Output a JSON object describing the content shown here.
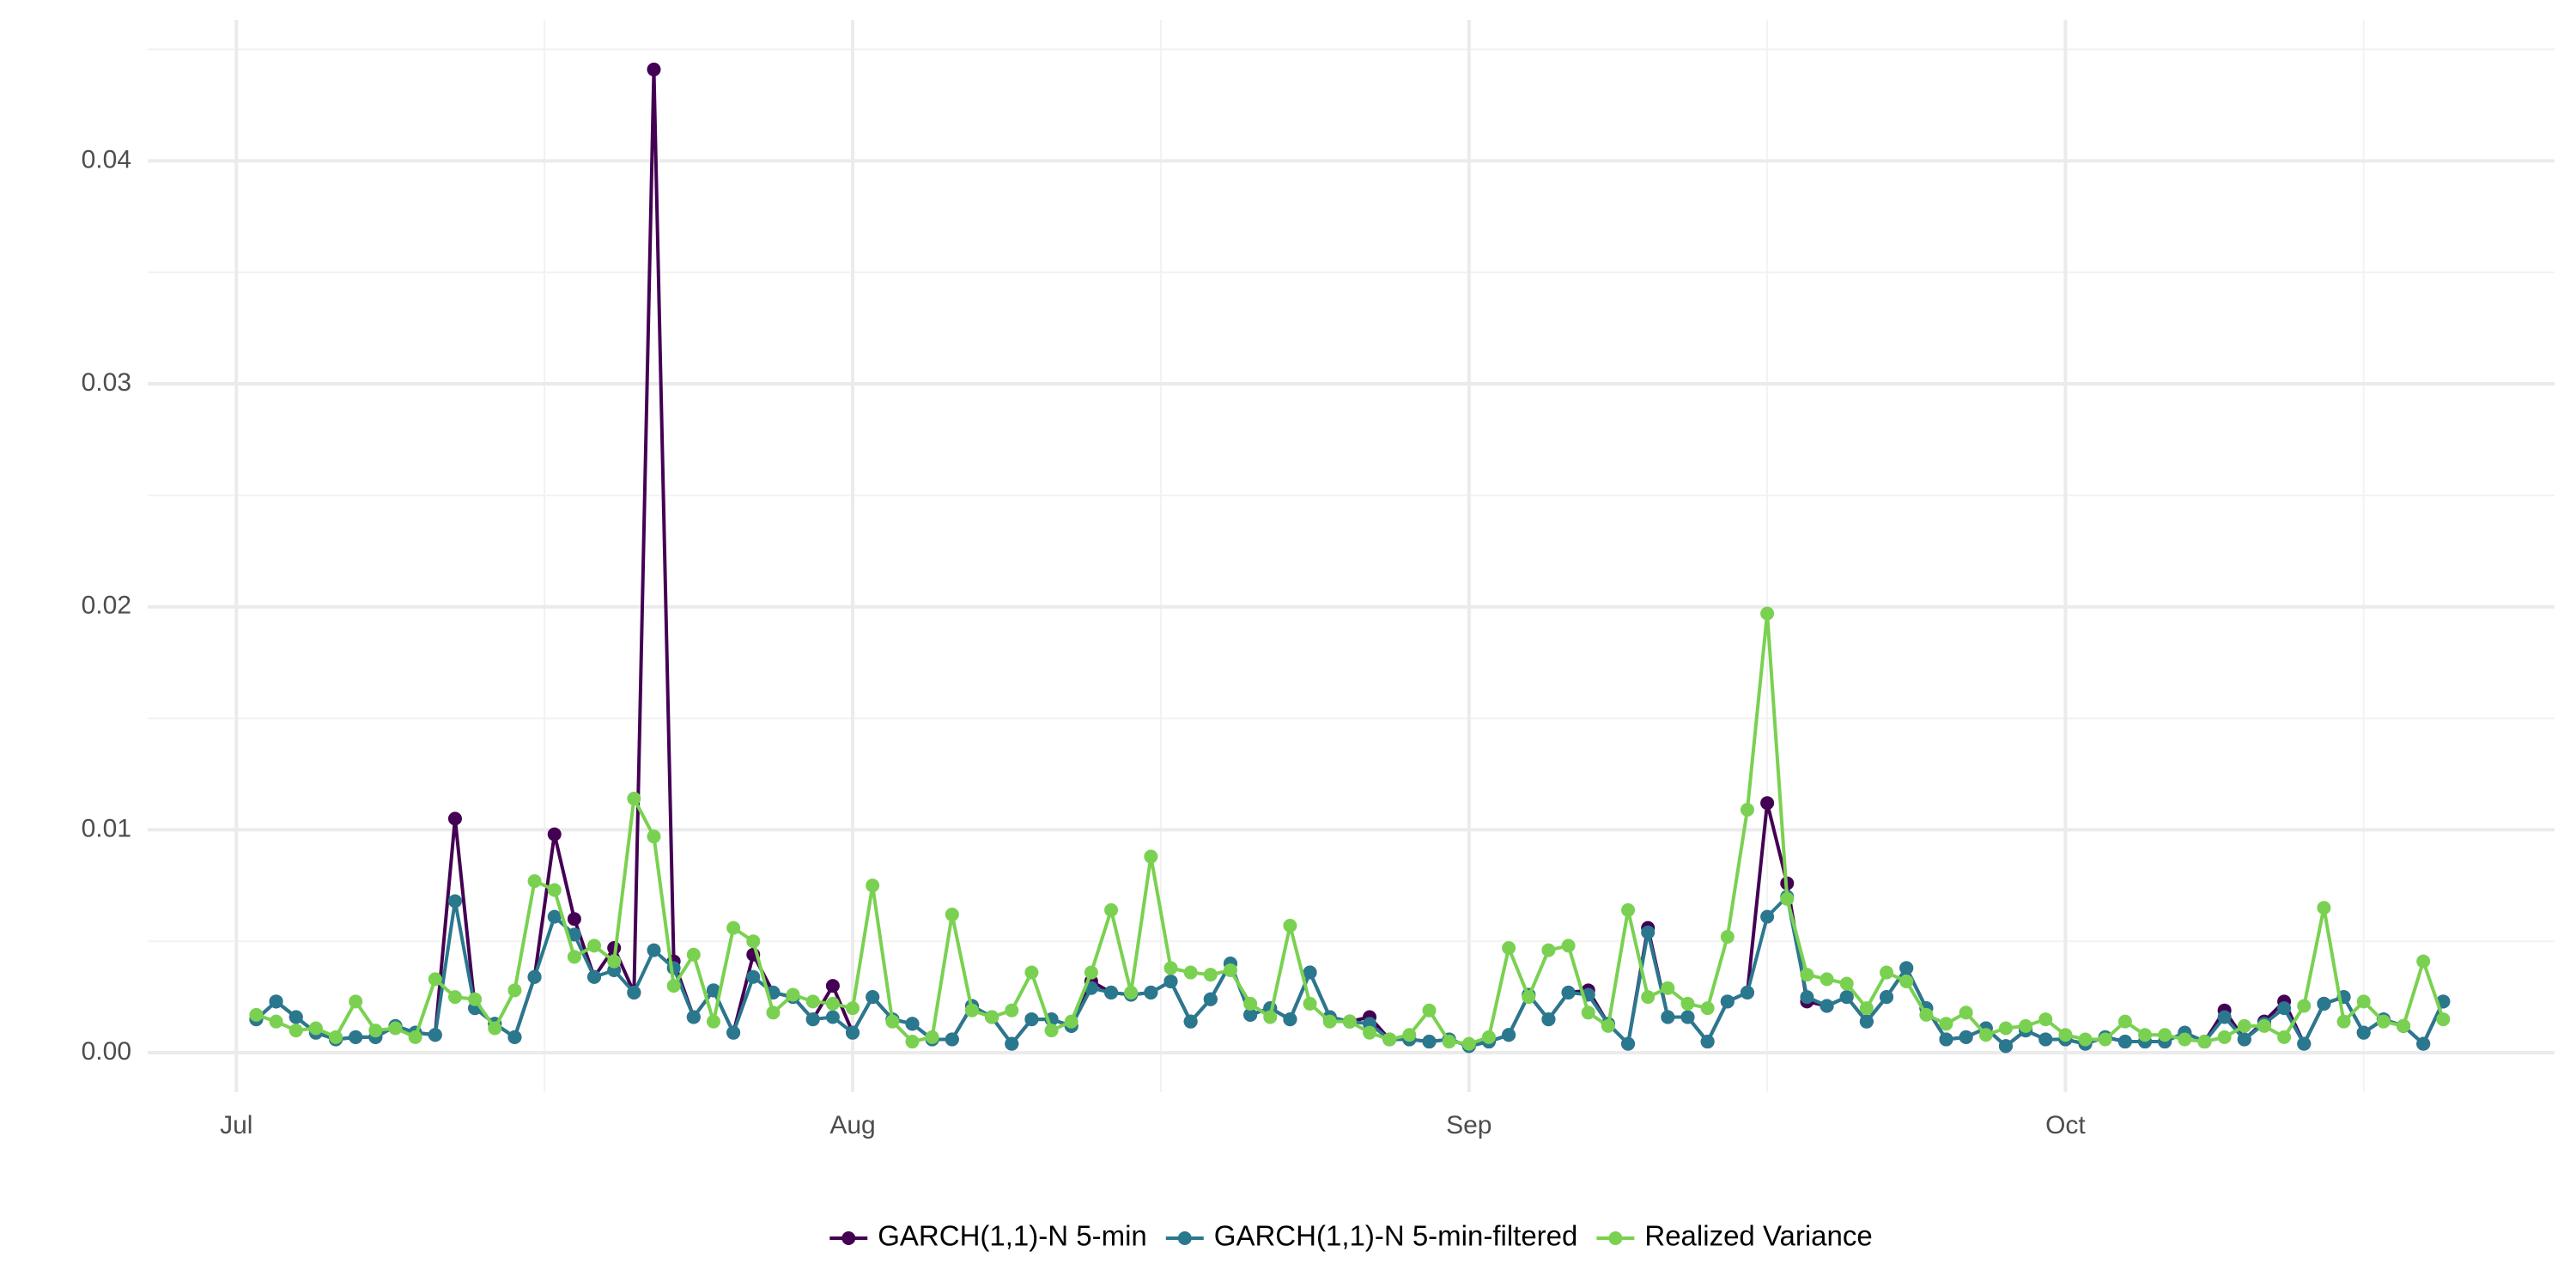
{
  "chart_data": {
    "type": "line",
    "x": [
      1,
      2,
      3,
      4,
      5,
      6,
      7,
      8,
      9,
      10,
      11,
      12,
      13,
      14,
      15,
      16,
      17,
      18,
      19,
      20,
      21,
      22,
      23,
      24,
      25,
      26,
      27,
      28,
      29,
      30,
      31,
      32,
      33,
      34,
      35,
      36,
      37,
      38,
      39,
      40,
      41,
      42,
      43,
      44,
      45,
      46,
      47,
      48,
      49,
      50,
      51,
      52,
      53,
      54,
      55,
      56,
      57,
      58,
      59,
      60,
      61,
      62,
      63,
      64,
      65,
      66,
      67,
      68,
      69,
      70,
      71,
      72,
      73,
      74,
      75,
      76,
      77,
      78,
      79,
      80,
      81,
      82,
      83,
      84,
      85,
      86,
      87,
      88,
      89,
      90,
      91,
      92,
      93,
      94,
      95,
      96,
      97,
      98,
      99,
      100,
      101,
      102,
      103,
      104,
      105,
      106,
      107,
      108,
      109,
      110,
      111
    ],
    "xlim": [
      -4.46,
      116.6
    ],
    "xticks": [
      {
        "value": 0,
        "label": "Jul"
      },
      {
        "value": 31,
        "label": "Aug"
      },
      {
        "value": 62,
        "label": "Sep"
      },
      {
        "value": 92,
        "label": "Oct"
      }
    ],
    "ylim": [
      -0.00177,
      0.04633
    ],
    "yticks": [
      {
        "value": 0,
        "label": "0.00"
      },
      0.01,
      0.02,
      0.03,
      0.04
    ],
    "grid": true,
    "legend": "bottom",
    "series": [
      {
        "name": "GARCH(1,1)-N 5-min",
        "color": "#440154",
        "values": [
          0.0015,
          0.0023,
          0.0016,
          0.0009,
          0.0006,
          0.0007,
          0.0007,
          0.0012,
          0.0009,
          0.0008,
          0.0105,
          0.002,
          0.0013,
          0.0007,
          0.0034,
          0.0098,
          0.006,
          0.0034,
          0.0047,
          0.0027,
          0.0441,
          0.0041,
          0.0016,
          0.0028,
          0.0009,
          0.0044,
          0.0027,
          0.0025,
          0.0015,
          0.003,
          0.0009,
          0.0025,
          0.0015,
          0.0013,
          0.0006,
          0.0006,
          0.0021,
          0.0016,
          0.0004,
          0.0015,
          0.0015,
          0.0012,
          0.0032,
          0.0027,
          0.0026,
          0.0027,
          0.0032,
          0.0014,
          0.0024,
          0.004,
          0.0017,
          0.002,
          0.0015,
          0.0036,
          0.0016,
          0.0014,
          0.0016,
          0.0006,
          0.0006,
          0.0005,
          0.0006,
          0.0003,
          0.0005,
          0.0008,
          0.0026,
          0.0015,
          0.0027,
          0.0028,
          0.0013,
          0.0004,
          0.0056,
          0.0016,
          0.0016,
          0.0005,
          0.0023,
          0.0027,
          0.0112,
          0.0076,
          0.0023,
          0.0021,
          0.0025,
          0.0014,
          0.0025,
          0.0038,
          0.002,
          0.0006,
          0.0007,
          0.0011,
          0.0003,
          0.001,
          0.0006,
          0.0006,
          0.0004,
          0.0007,
          0.0005,
          0.0005,
          0.0005,
          0.0009,
          0.0005,
          0.0019,
          0.0006,
          0.0014,
          0.0023,
          0.0004,
          0.0022,
          0.0025,
          0.0009,
          0.0015,
          0.0012,
          0.0004,
          0.0023
        ]
      },
      {
        "name": "GARCH(1,1)-N 5-min-filtered",
        "color": "#2A788E",
        "values": [
          0.0015,
          0.0023,
          0.0016,
          0.0009,
          0.0006,
          0.0007,
          0.0007,
          0.0012,
          0.0009,
          0.0008,
          0.0068,
          0.002,
          0.0013,
          0.0007,
          0.0034,
          0.0061,
          0.0053,
          0.0034,
          0.0037,
          0.0027,
          0.0046,
          0.0038,
          0.0016,
          0.0028,
          0.0009,
          0.0034,
          0.0027,
          0.0025,
          0.0015,
          0.0016,
          0.0009,
          0.0025,
          0.0015,
          0.0013,
          0.0006,
          0.0006,
          0.0021,
          0.0016,
          0.0004,
          0.0015,
          0.0015,
          0.0012,
          0.0029,
          0.0027,
          0.0026,
          0.0027,
          0.0032,
          0.0014,
          0.0024,
          0.004,
          0.0017,
          0.002,
          0.0015,
          0.0036,
          0.0016,
          0.0014,
          0.0013,
          0.0006,
          0.0006,
          0.0005,
          0.0006,
          0.0003,
          0.0005,
          0.0008,
          0.0026,
          0.0015,
          0.0027,
          0.0026,
          0.0013,
          0.0004,
          0.0054,
          0.0016,
          0.0016,
          0.0005,
          0.0023,
          0.0027,
          0.0061,
          0.007,
          0.0025,
          0.0021,
          0.0025,
          0.0014,
          0.0025,
          0.0038,
          0.002,
          0.0006,
          0.0007,
          0.0011,
          0.0003,
          0.001,
          0.0006,
          0.0006,
          0.0004,
          0.0007,
          0.0005,
          0.0005,
          0.0005,
          0.0009,
          0.0005,
          0.0016,
          0.0006,
          0.0013,
          0.002,
          0.0004,
          0.0022,
          0.0025,
          0.0009,
          0.0015,
          0.0012,
          0.0004,
          0.0023
        ]
      },
      {
        "name": "Realized Variance",
        "color": "#7AD151",
        "values": [
          0.0017,
          0.0014,
          0.001,
          0.0011,
          0.0007,
          0.0023,
          0.001,
          0.0011,
          0.0007,
          0.0033,
          0.0025,
          0.0024,
          0.0011,
          0.0028,
          0.0077,
          0.0073,
          0.0043,
          0.0048,
          0.0041,
          0.0114,
          0.0097,
          0.003,
          0.0044,
          0.0014,
          0.0056,
          0.005,
          0.0018,
          0.0026,
          0.0023,
          0.0022,
          0.002,
          0.0075,
          0.0014,
          0.0005,
          0.0007,
          0.0062,
          0.0019,
          0.0016,
          0.0019,
          0.0036,
          0.001,
          0.0014,
          0.0036,
          0.0064,
          0.0027,
          0.0088,
          0.0038,
          0.0036,
          0.0035,
          0.0037,
          0.0022,
          0.0016,
          0.0057,
          0.0022,
          0.0014,
          0.0014,
          0.0009,
          0.0006,
          0.0008,
          0.0019,
          0.0005,
          0.0004,
          0.0007,
          0.0047,
          0.0025,
          0.0046,
          0.0048,
          0.0018,
          0.0012,
          0.0064,
          0.0025,
          0.0029,
          0.0022,
          0.002,
          0.0052,
          0.0109,
          0.0197,
          0.0069,
          0.0035,
          0.0033,
          0.0031,
          0.002,
          0.0036,
          0.0032,
          0.0017,
          0.0013,
          0.0018,
          0.0008,
          0.0011,
          0.0012,
          0.0015,
          0.0008,
          0.0006,
          0.0006,
          0.0014,
          0.0008,
          0.0008,
          0.0006,
          0.0005,
          0.0007,
          0.0012,
          0.0012,
          0.0007,
          0.0021,
          0.0065,
          0.0014,
          0.0023,
          0.0014,
          0.0012,
          0.0041,
          0.0015
        ]
      }
    ]
  }
}
